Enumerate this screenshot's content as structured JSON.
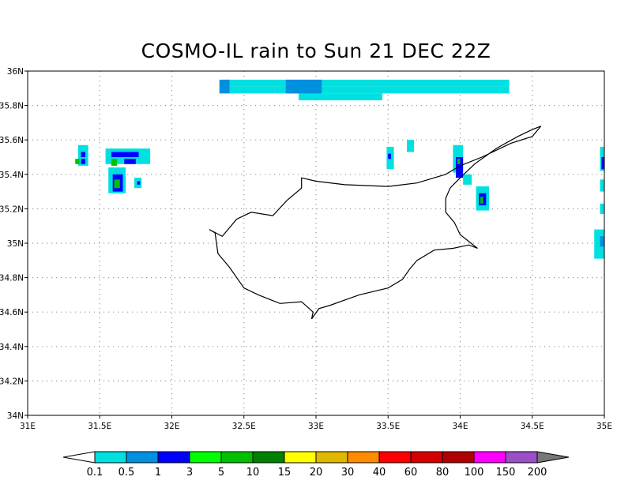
{
  "title": "COSMO-IL rain to Sun 21 DEC 22Z",
  "map": {
    "lon_range": [
      31,
      35
    ],
    "lat_range": [
      34,
      36
    ],
    "x_ticks": [
      "31E",
      "31.5E",
      "32E",
      "32.5E",
      "33E",
      "33.5E",
      "34E",
      "34.5E",
      "35E"
    ],
    "y_ticks": [
      "34N",
      "34.2N",
      "34.4N",
      "34.6N",
      "34.8N",
      "35N",
      "35.2N",
      "35.4N",
      "35.6N",
      "35.8N",
      "36N"
    ],
    "grid": "dotted",
    "coastline": [
      [
        32.26,
        35.08
      ],
      [
        32.3,
        35.06
      ],
      [
        32.32,
        34.94
      ],
      [
        32.4,
        34.86
      ],
      [
        32.5,
        34.74
      ],
      [
        32.6,
        34.7
      ],
      [
        32.75,
        34.65
      ],
      [
        32.9,
        34.66
      ],
      [
        32.98,
        34.6
      ],
      [
        32.97,
        34.56
      ],
      [
        33.02,
        34.62
      ],
      [
        33.1,
        34.64
      ],
      [
        33.2,
        34.67
      ],
      [
        33.3,
        34.7
      ],
      [
        33.5,
        34.74
      ],
      [
        33.6,
        34.79
      ],
      [
        33.65,
        34.85
      ],
      [
        33.7,
        34.9
      ],
      [
        33.82,
        34.96
      ],
      [
        33.95,
        34.97
      ],
      [
        34.06,
        34.99
      ],
      [
        34.12,
        34.97
      ],
      [
        34.0,
        35.05
      ],
      [
        33.96,
        35.12
      ],
      [
        33.9,
        35.18
      ],
      [
        33.9,
        35.26
      ],
      [
        33.93,
        35.32
      ],
      [
        34.0,
        35.38
      ],
      [
        34.1,
        35.46
      ],
      [
        34.25,
        35.55
      ],
      [
        34.4,
        35.62
      ],
      [
        34.5,
        35.66
      ],
      [
        34.56,
        35.68
      ],
      [
        34.5,
        35.62
      ],
      [
        34.35,
        35.58
      ],
      [
        34.15,
        35.5
      ],
      [
        34.0,
        35.45
      ],
      [
        33.9,
        35.4
      ],
      [
        33.7,
        35.35
      ],
      [
        33.5,
        35.33
      ],
      [
        33.2,
        35.34
      ],
      [
        33.0,
        35.36
      ],
      [
        32.9,
        35.38
      ],
      [
        32.9,
        35.32
      ],
      [
        32.8,
        35.25
      ],
      [
        32.7,
        35.16
      ],
      [
        32.55,
        35.18
      ],
      [
        32.45,
        35.14
      ],
      [
        32.35,
        35.04
      ],
      [
        32.26,
        35.08
      ]
    ]
  },
  "rain_cells": [
    {
      "lon": 32.37,
      "lat": 35.95,
      "w": 0.42,
      "h": 0.04,
      "color": "#00e0e0"
    },
    {
      "lon": 32.79,
      "lat": 35.95,
      "w": 1.55,
      "h": 0.04,
      "color": "#00e0e0"
    },
    {
      "lon": 32.37,
      "lat": 35.91,
      "w": 0.34,
      "h": 0.04,
      "color": "#00e0e0"
    },
    {
      "lon": 32.71,
      "lat": 35.91,
      "w": 1.63,
      "h": 0.04,
      "color": "#00e0e0"
    },
    {
      "lon": 32.88,
      "lat": 35.87,
      "w": 0.58,
      "h": 0.04,
      "color": "#00e0e0"
    },
    {
      "lon": 32.33,
      "lat": 35.95,
      "w": 0.07,
      "h": 0.08,
      "color": "#0090e0"
    },
    {
      "lon": 32.79,
      "lat": 35.95,
      "w": 0.25,
      "h": 0.08,
      "color": "#0090e0"
    },
    {
      "lon": 31.35,
      "lat": 35.57,
      "w": 0.07,
      "h": 0.12,
      "color": "#00e0e0"
    },
    {
      "lon": 31.37,
      "lat": 35.53,
      "w": 0.03,
      "h": 0.03,
      "color": "#0000ff"
    },
    {
      "lon": 31.33,
      "lat": 35.49,
      "w": 0.03,
      "h": 0.03,
      "color": "#00c000"
    },
    {
      "lon": 31.37,
      "lat": 35.49,
      "w": 0.03,
      "h": 0.03,
      "color": "#0000ff"
    },
    {
      "lon": 31.54,
      "lat": 35.55,
      "w": 0.31,
      "h": 0.09,
      "color": "#00e0e0"
    },
    {
      "lon": 31.58,
      "lat": 35.53,
      "w": 0.19,
      "h": 0.03,
      "color": "#0000ff"
    },
    {
      "lon": 31.58,
      "lat": 35.49,
      "w": 0.04,
      "h": 0.04,
      "color": "#00c000"
    },
    {
      "lon": 31.67,
      "lat": 35.49,
      "w": 0.08,
      "h": 0.03,
      "color": "#0000ff"
    },
    {
      "lon": 31.56,
      "lat": 35.44,
      "w": 0.12,
      "h": 0.15,
      "color": "#00e0e0"
    },
    {
      "lon": 31.59,
      "lat": 35.4,
      "w": 0.07,
      "h": 0.1,
      "color": "#0000ff"
    },
    {
      "lon": 31.6,
      "lat": 35.37,
      "w": 0.04,
      "h": 0.05,
      "color": "#00c000"
    },
    {
      "lon": 31.74,
      "lat": 35.38,
      "w": 0.05,
      "h": 0.06,
      "color": "#00e0e0"
    },
    {
      "lon": 31.76,
      "lat": 35.36,
      "w": 0.02,
      "h": 0.02,
      "color": "#0000ff"
    },
    {
      "lon": 33.49,
      "lat": 35.56,
      "w": 0.05,
      "h": 0.13,
      "color": "#00e0e0"
    },
    {
      "lon": 33.5,
      "lat": 35.52,
      "w": 0.02,
      "h": 0.03,
      "color": "#0000ff"
    },
    {
      "lon": 33.63,
      "lat": 35.6,
      "w": 0.05,
      "h": 0.07,
      "color": "#00e0e0"
    },
    {
      "lon": 33.95,
      "lat": 35.57,
      "w": 0.07,
      "h": 0.16,
      "color": "#00e0e0"
    },
    {
      "lon": 33.97,
      "lat": 35.5,
      "w": 0.05,
      "h": 0.12,
      "color": "#0000ff"
    },
    {
      "lon": 33.98,
      "lat": 35.49,
      "w": 0.02,
      "h": 0.03,
      "color": "#00c000"
    },
    {
      "lon": 34.02,
      "lat": 35.4,
      "w": 0.06,
      "h": 0.06,
      "color": "#00e0e0"
    },
    {
      "lon": 34.11,
      "lat": 35.33,
      "w": 0.09,
      "h": 0.14,
      "color": "#00e0e0"
    },
    {
      "lon": 34.13,
      "lat": 35.29,
      "w": 0.05,
      "h": 0.07,
      "color": "#0000ff"
    },
    {
      "lon": 34.14,
      "lat": 35.27,
      "w": 0.02,
      "h": 0.04,
      "color": "#00c000"
    },
    {
      "lon": 34.97,
      "lat": 35.56,
      "w": 0.03,
      "h": 0.14,
      "color": "#00e0e0"
    },
    {
      "lon": 34.98,
      "lat": 35.5,
      "w": 0.02,
      "h": 0.07,
      "color": "#0000ff"
    },
    {
      "lon": 34.97,
      "lat": 35.37,
      "w": 0.03,
      "h": 0.07,
      "color": "#00e0e0"
    },
    {
      "lon": 34.97,
      "lat": 35.23,
      "w": 0.03,
      "h": 0.06,
      "color": "#00e0e0"
    },
    {
      "lon": 34.93,
      "lat": 35.08,
      "w": 0.07,
      "h": 0.17,
      "color": "#00e0e0"
    },
    {
      "lon": 34.97,
      "lat": 35.04,
      "w": 0.03,
      "h": 0.06,
      "color": "#0090e0"
    }
  ],
  "colorbar": {
    "colors": [
      "#00e0e0",
      "#0090e0",
      "#0000ff",
      "#00ff00",
      "#00c000",
      "#008000",
      "#ffff00",
      "#e0b800",
      "#ff8c00",
      "#ff0000",
      "#d40000",
      "#b00000",
      "#ff00ff",
      "#9a4fc7"
    ],
    "low_end_color": "#ffffff",
    "high_end_color": "#777777",
    "labels": [
      "0.1",
      "0.5",
      "1",
      "3",
      "5",
      "10",
      "15",
      "20",
      "30",
      "40",
      "60",
      "80",
      "100",
      "150",
      "200"
    ]
  }
}
